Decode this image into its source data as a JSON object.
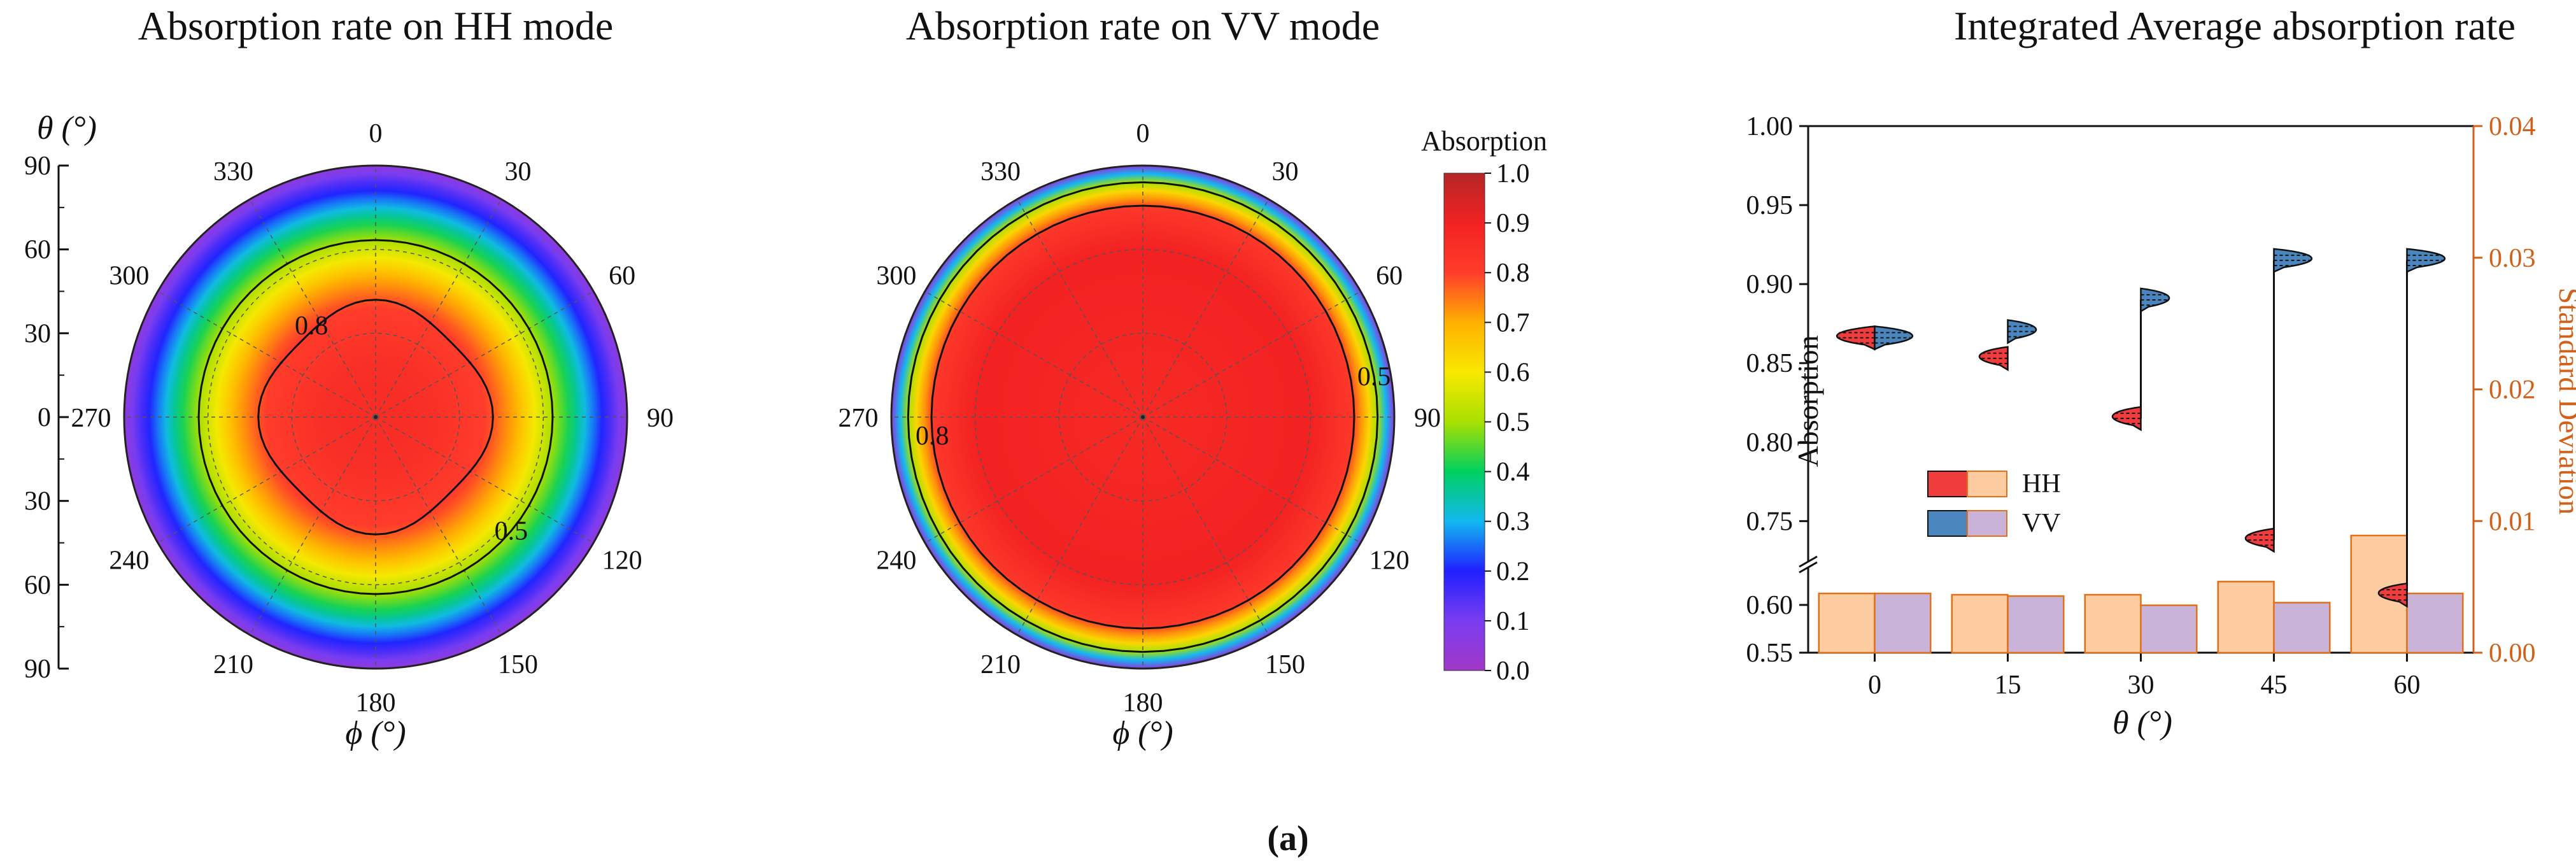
{
  "caption": "(a)",
  "chart_data": [
    {
      "type": "heatmap",
      "subtype": "polar",
      "title": "Absorption rate on HH mode",
      "theta_label": "θ (°)",
      "phi_label": "ϕ (°)",
      "theta_ticks": [
        "90",
        "60",
        "30",
        "0",
        "30",
        "60",
        "90"
      ],
      "phi_ticks": [
        "0",
        "30",
        "60",
        "90",
        "120",
        "150",
        "180",
        "210",
        "240",
        "270",
        "300",
        "330"
      ],
      "radial_profile": {
        "theta_deg": [
          0,
          20,
          40,
          50,
          60,
          70,
          80,
          90
        ],
        "absorption": [
          0.86,
          0.85,
          0.8,
          0.7,
          0.55,
          0.4,
          0.22,
          0.05
        ]
      },
      "contours": [
        {
          "level": 0.8,
          "label": "0.8"
        },
        {
          "level": 0.5,
          "label": "0.5"
        }
      ]
    },
    {
      "type": "heatmap",
      "subtype": "polar",
      "title": "Absorption rate on VV mode",
      "phi_label": "ϕ (°)",
      "phi_ticks": [
        "0",
        "30",
        "60",
        "90",
        "120",
        "150",
        "180",
        "210",
        "240",
        "270",
        "300",
        "330"
      ],
      "radial_profile": {
        "theta_deg": [
          0,
          40,
          60,
          75,
          82,
          86,
          88,
          90
        ],
        "absorption": [
          0.87,
          0.89,
          0.9,
          0.82,
          0.6,
          0.4,
          0.2,
          0.05
        ]
      },
      "contours": [
        {
          "level": 0.8,
          "label": "0.8"
        },
        {
          "level": 0.5,
          "label": "0.5"
        }
      ],
      "colorbar": {
        "title": "Absorption",
        "range": [
          0,
          1
        ],
        "ticks": [
          "0.0",
          "0.1",
          "0.2",
          "0.3",
          "0.4",
          "0.5",
          "0.6",
          "0.7",
          "0.8",
          "0.9",
          "1.0"
        ],
        "colors": [
          "#a238c8",
          "#7a3cf0",
          "#2020ff",
          "#12b8f0",
          "#00d060",
          "#a8e000",
          "#f8e800",
          "#ffb000",
          "#ff3d2b",
          "#f22222",
          "#b52626"
        ]
      }
    },
    {
      "type": "bar",
      "overlay": "half-violin",
      "title": "Integrated Average absorption rate",
      "xlabel": "θ (°)",
      "ylabel": "Absorption",
      "ylabel_right": "Standard Deviation",
      "categories": [
        "0",
        "15",
        "30",
        "45",
        "60"
      ],
      "ylim": [
        0.55,
        1.0
      ],
      "axis_break": [
        0.63,
        0.73
      ],
      "yticks": [
        "0.55",
        "0.60",
        "0.75",
        "0.80",
        "0.85",
        "0.90",
        "0.95",
        "1.00"
      ],
      "y2lim": [
        0.0,
        0.04
      ],
      "y2ticks": [
        "0.00",
        "0.01",
        "0.02",
        "0.03",
        "0.04"
      ],
      "legend": [
        {
          "name": "HH"
        },
        {
          "name": "VV"
        }
      ],
      "series": [
        {
          "name": "HH",
          "kind": "half-violin",
          "axis": "left",
          "values": [
            0.866,
            0.853,
            0.815,
            0.738,
            0.6105
          ]
        },
        {
          "name": "VV",
          "kind": "half-violin",
          "axis": "left",
          "values": [
            0.866,
            0.87,
            0.89,
            0.915,
            0.915
          ]
        },
        {
          "name": "HH",
          "kind": "bar",
          "axis": "right",
          "values": [
            0.0045,
            0.0044,
            0.0044,
            0.0054,
            0.0089
          ]
        },
        {
          "name": "VV",
          "kind": "bar",
          "axis": "right",
          "values": [
            0.0045,
            0.0043,
            0.0036,
            0.0038,
            0.0045
          ]
        }
      ],
      "colors": {
        "hh_violin": "#f03c3c",
        "vv_violin": "#4a86bd",
        "hh_bar": "#fdcca0",
        "vv_bar": "#c9b3d9",
        "bar_edge": "#e0701a",
        "right_axis": "#d0601a"
      }
    }
  ]
}
